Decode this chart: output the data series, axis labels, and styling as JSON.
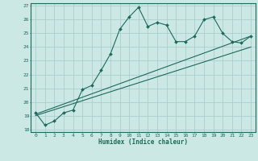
{
  "xlabel": "Humidex (Indice chaleur)",
  "ylabel": "",
  "bg_color": "#cce8e5",
  "grid_color": "#aad0cc",
  "line_color": "#1a6b5a",
  "xlim": [
    -0.5,
    23.5
  ],
  "ylim": [
    17.8,
    27.2
  ],
  "yticks": [
    18,
    19,
    20,
    21,
    22,
    23,
    24,
    25,
    26,
    27
  ],
  "xticks": [
    0,
    1,
    2,
    3,
    4,
    5,
    6,
    7,
    8,
    9,
    10,
    11,
    12,
    13,
    14,
    15,
    16,
    17,
    18,
    19,
    20,
    21,
    22,
    23
  ],
  "series1_x": [
    0,
    1,
    2,
    3,
    4,
    5,
    6,
    7,
    8,
    9,
    10,
    11,
    12,
    13,
    14,
    15,
    16,
    17,
    18,
    19,
    20,
    21,
    22,
    23
  ],
  "series1_y": [
    19.2,
    18.3,
    18.6,
    19.2,
    19.4,
    20.9,
    21.2,
    22.3,
    23.5,
    25.3,
    26.2,
    26.9,
    25.5,
    25.8,
    25.6,
    24.4,
    24.4,
    24.8,
    26.0,
    26.2,
    25.0,
    24.4,
    24.3,
    24.8
  ],
  "series2_x": [
    0,
    23
  ],
  "series2_y": [
    19.1,
    24.8
  ],
  "series3_x": [
    0,
    23
  ],
  "series3_y": [
    19.0,
    24.0
  ]
}
